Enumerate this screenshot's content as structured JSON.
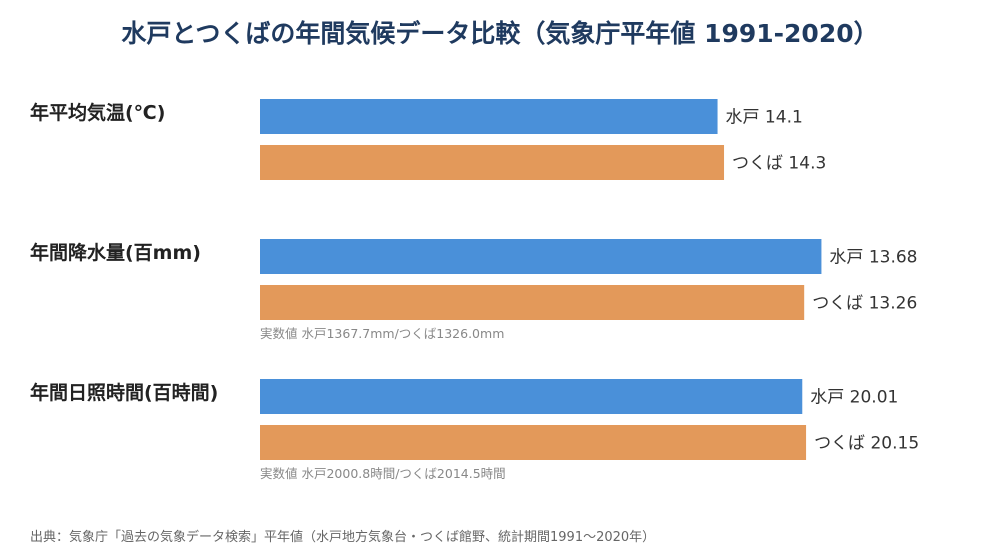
{
  "title": "水戸とつくばの年間気候データ比較（気象庁平年値 1991-2020）",
  "source": "出典：気象庁「過去の気象データ検索」平年値（水戸地方気象台・つくば館野、統計期間1991〜2020年）",
  "colors": {
    "mito": "#4a90d9",
    "tsukuba": "#e3995a",
    "category": "#222222",
    "value": "#333333",
    "note": "#888888"
  },
  "chart_data": {
    "type": "bar",
    "orientation": "horizontal",
    "categories": [
      "年平均気温(℃)",
      "年間降水量(百mm)",
      "年間日照時間(百時間)"
    ],
    "series": [
      {
        "name": "水戸",
        "values": [
          14.1,
          13.68,
          20.01
        ],
        "labels": [
          "水戸 14.1",
          "水戸 13.68",
          "水戸 20.01"
        ]
      },
      {
        "name": "つくば",
        "values": [
          14.3,
          13.26,
          20.15
        ],
        "labels": [
          "つくば 14.3",
          "つくば 13.26",
          "つくば 20.15"
        ]
      }
    ],
    "notes": [
      "",
      "実数値 水戸1367.7mm/つくば1326.0mm",
      "実数値 水戸2000.8時間/つくば2014.5時間"
    ]
  }
}
